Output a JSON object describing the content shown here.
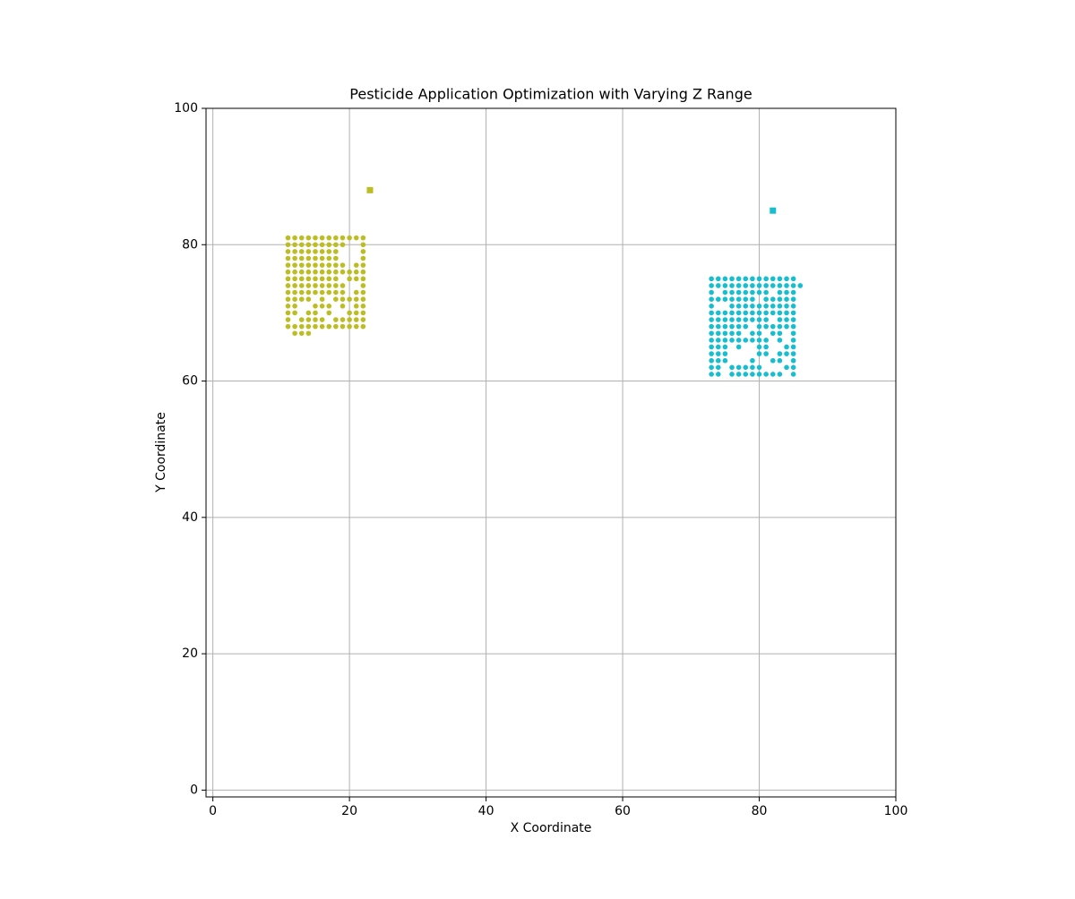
{
  "chart_data": {
    "type": "scatter",
    "title": "Pesticide Application Optimization with Varying Z Range",
    "x_label": "X Coordinate",
    "y_label": "Y Coordinate",
    "xlim": [
      -1,
      100
    ],
    "ylim": [
      -1,
      100
    ],
    "xticks": [
      0,
      20,
      40,
      60,
      80,
      100
    ],
    "yticks": [
      0,
      20,
      40,
      60,
      80,
      100
    ],
    "grid": true,
    "series": [
      {
        "color": "#bcbd22",
        "marker": "circle",
        "x": [
          11,
          12,
          13,
          14,
          15,
          16,
          17,
          18,
          19,
          20,
          21,
          22,
          11,
          12,
          13,
          14,
          15,
          16,
          17,
          18,
          19,
          22,
          11,
          12,
          13,
          14,
          15,
          16,
          17,
          18,
          22,
          11,
          12,
          13,
          14,
          15,
          16,
          17,
          18,
          22,
          11,
          12,
          13,
          14,
          15,
          16,
          17,
          18,
          19,
          21,
          22,
          11,
          12,
          13,
          14,
          15,
          16,
          17,
          18,
          19,
          20,
          21,
          22,
          11,
          12,
          13,
          14,
          15,
          16,
          17,
          18,
          20,
          21,
          22,
          11,
          12,
          13,
          14,
          15,
          16,
          17,
          18,
          19,
          22,
          11,
          12,
          13,
          14,
          15,
          16,
          17,
          18,
          19,
          21,
          22,
          11,
          12,
          13,
          14,
          16,
          18,
          19,
          20,
          21,
          22,
          11,
          12,
          15,
          16,
          17,
          19,
          21,
          22,
          11,
          12,
          14,
          15,
          17,
          20,
          21,
          22,
          11,
          13,
          14,
          15,
          16,
          18,
          19,
          20,
          21,
          22,
          11,
          12,
          13,
          14,
          15,
          16,
          17,
          18,
          19,
          20,
          21,
          22,
          12,
          13,
          14
        ],
        "y": [
          81,
          81,
          81,
          81,
          81,
          81,
          81,
          81,
          81,
          81,
          81,
          81,
          80,
          80,
          80,
          80,
          80,
          80,
          80,
          80,
          80,
          80,
          79,
          79,
          79,
          79,
          79,
          79,
          79,
          79,
          79,
          78,
          78,
          78,
          78,
          78,
          78,
          78,
          78,
          78,
          77,
          77,
          77,
          77,
          77,
          77,
          77,
          77,
          77,
          77,
          77,
          76,
          76,
          76,
          76,
          76,
          76,
          76,
          76,
          76,
          76,
          76,
          76,
          75,
          75,
          75,
          75,
          75,
          75,
          75,
          75,
          75,
          75,
          75,
          74,
          74,
          74,
          74,
          74,
          74,
          74,
          74,
          74,
          74,
          73,
          73,
          73,
          73,
          73,
          73,
          73,
          73,
          73,
          73,
          73,
          72,
          72,
          72,
          72,
          72,
          72,
          72,
          72,
          72,
          72,
          71,
          71,
          71,
          71,
          71,
          71,
          71,
          71,
          70,
          70,
          70,
          70,
          70,
          70,
          70,
          70,
          69,
          69,
          69,
          69,
          69,
          69,
          69,
          69,
          69,
          69,
          68,
          68,
          68,
          68,
          68,
          68,
          68,
          68,
          68,
          68,
          68,
          68,
          67,
          67,
          67
        ]
      },
      {
        "color": "#bcbd22",
        "marker": "square",
        "x": [
          23
        ],
        "y": [
          88
        ]
      },
      {
        "color": "#17becf",
        "marker": "circle",
        "x": [
          73,
          74,
          75,
          76,
          77,
          78,
          79,
          80,
          81,
          82,
          83,
          84,
          85,
          73,
          74,
          75,
          76,
          77,
          78,
          79,
          80,
          81,
          82,
          83,
          84,
          85,
          86,
          73,
          75,
          76,
          77,
          78,
          79,
          80,
          81,
          83,
          84,
          85,
          73,
          74,
          75,
          76,
          77,
          78,
          79,
          81,
          82,
          83,
          84,
          85,
          73,
          76,
          77,
          78,
          79,
          80,
          81,
          82,
          83,
          84,
          85,
          73,
          74,
          75,
          76,
          77,
          78,
          79,
          80,
          81,
          82,
          83,
          84,
          85,
          73,
          74,
          75,
          76,
          77,
          78,
          79,
          80,
          81,
          83,
          84,
          85,
          73,
          74,
          75,
          76,
          77,
          78,
          80,
          81,
          82,
          83,
          84,
          85,
          73,
          74,
          75,
          76,
          77,
          79,
          80,
          82,
          83,
          85,
          73,
          74,
          75,
          76,
          77,
          78,
          79,
          80,
          81,
          83,
          85,
          73,
          74,
          75,
          77,
          80,
          81,
          84,
          85,
          73,
          74,
          75,
          80,
          81,
          83,
          84,
          85,
          73,
          74,
          75,
          79,
          82,
          83,
          85,
          73,
          74,
          76,
          77,
          78,
          79,
          80,
          84,
          85,
          73,
          74,
          76,
          77,
          78,
          79,
          80,
          81,
          82,
          83,
          85
        ],
        "y": [
          75,
          75,
          75,
          75,
          75,
          75,
          75,
          75,
          75,
          75,
          75,
          75,
          75,
          74,
          74,
          74,
          74,
          74,
          74,
          74,
          74,
          74,
          74,
          74,
          74,
          74,
          74,
          73,
          73,
          73,
          73,
          73,
          73,
          73,
          73,
          73,
          73,
          73,
          72,
          72,
          72,
          72,
          72,
          72,
          72,
          72,
          72,
          72,
          72,
          72,
          71,
          71,
          71,
          71,
          71,
          71,
          71,
          71,
          71,
          71,
          71,
          70,
          70,
          70,
          70,
          70,
          70,
          70,
          70,
          70,
          70,
          70,
          70,
          70,
          69,
          69,
          69,
          69,
          69,
          69,
          69,
          69,
          69,
          69,
          69,
          69,
          68,
          68,
          68,
          68,
          68,
          68,
          68,
          68,
          68,
          68,
          68,
          68,
          67,
          67,
          67,
          67,
          67,
          67,
          67,
          67,
          67,
          67,
          66,
          66,
          66,
          66,
          66,
          66,
          66,
          66,
          66,
          66,
          66,
          65,
          65,
          65,
          65,
          65,
          65,
          65,
          65,
          64,
          64,
          64,
          64,
          64,
          64,
          64,
          64,
          63,
          63,
          63,
          63,
          63,
          63,
          63,
          62,
          62,
          62,
          62,
          62,
          62,
          62,
          62,
          62,
          61,
          61,
          61,
          61,
          61,
          61,
          61,
          61,
          61,
          61,
          61
        ]
      },
      {
        "color": "#17becf",
        "marker": "square",
        "x": [
          82
        ],
        "y": [
          85
        ]
      }
    ]
  }
}
